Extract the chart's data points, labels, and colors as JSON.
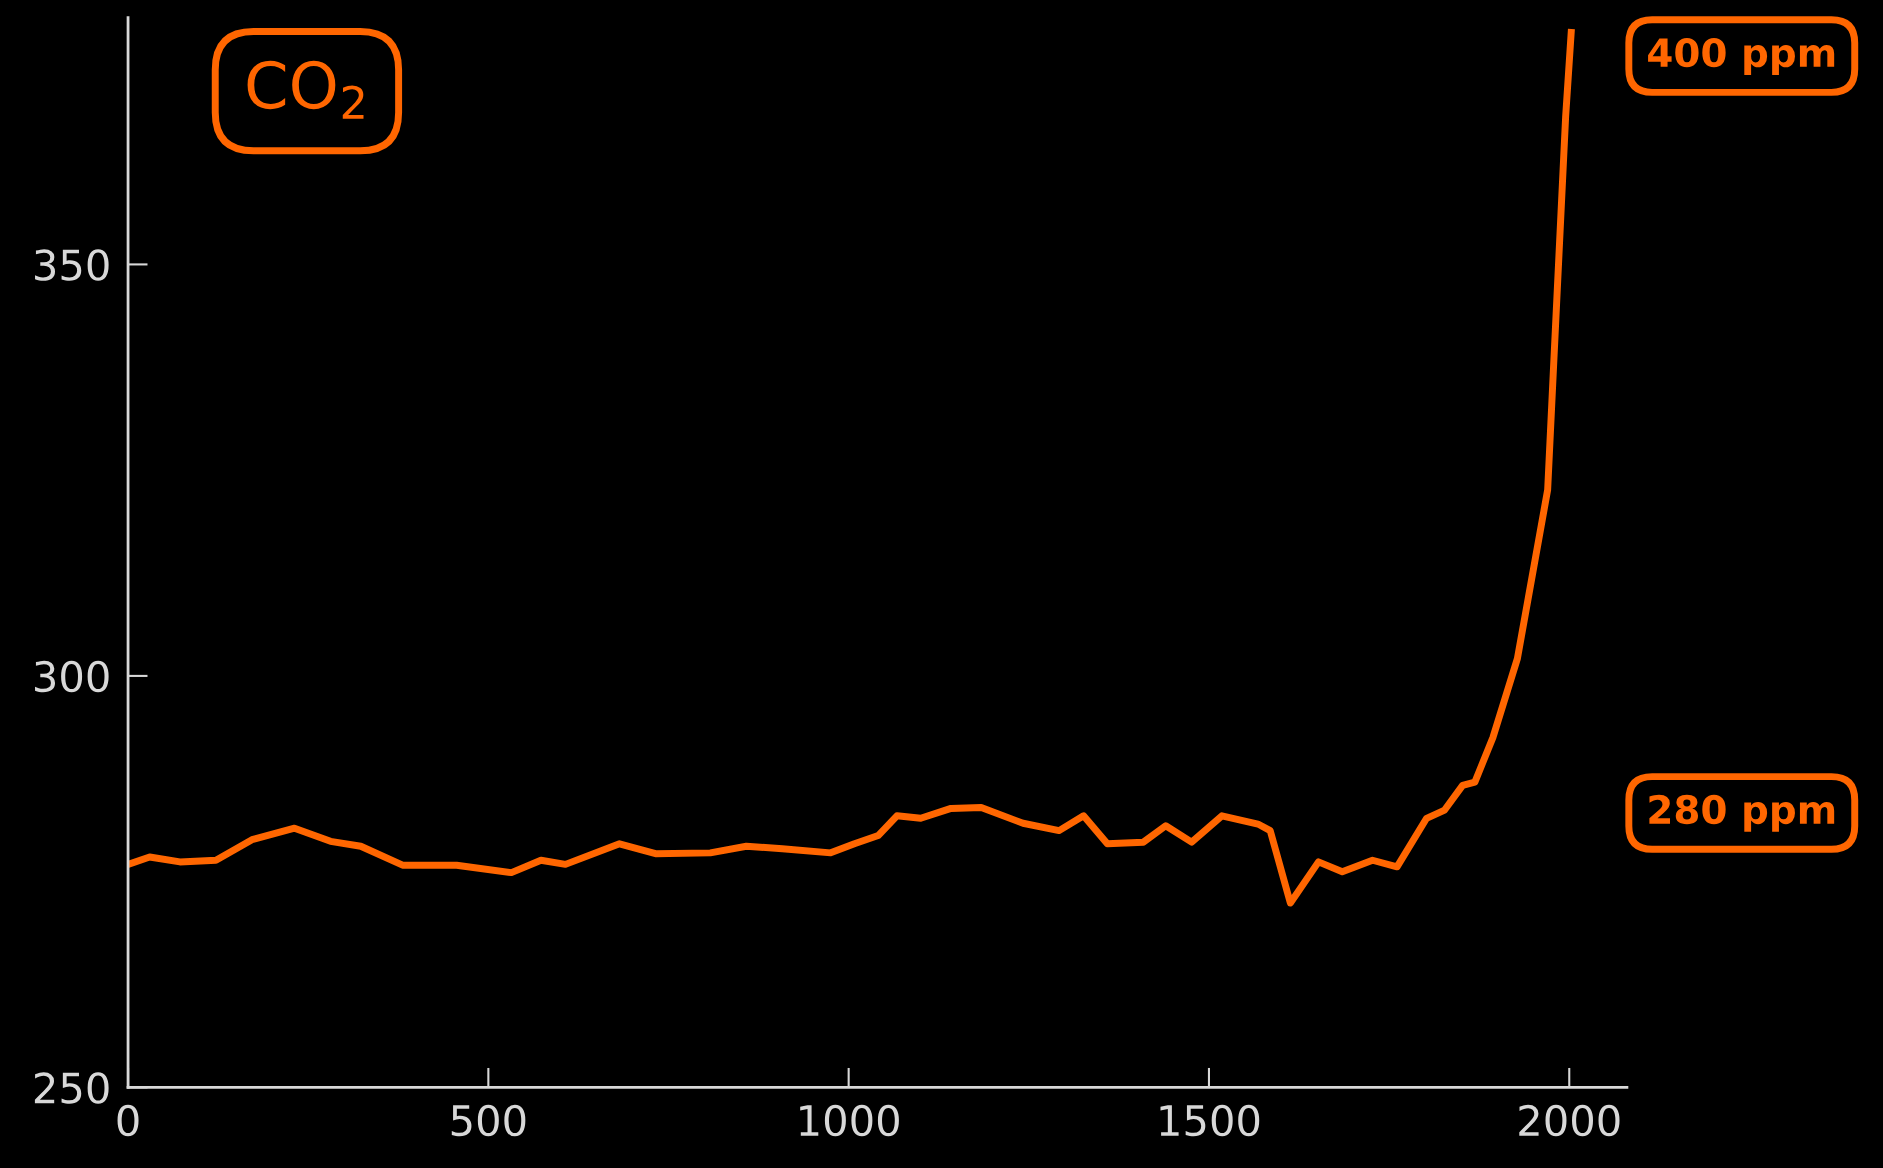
{
  "chart_data": {
    "type": "line",
    "x": [
      0,
      30,
      72,
      122,
      172,
      231,
      281,
      323,
      381,
      456,
      532,
      573,
      607,
      682,
      732,
      808,
      858,
      908,
      975,
      1008,
      1041,
      1067,
      1100,
      1142,
      1184,
      1242,
      1292,
      1326,
      1359,
      1409,
      1440,
      1476,
      1518,
      1568,
      1585,
      1613,
      1652,
      1685,
      1727,
      1761,
      1802,
      1827,
      1852,
      1869,
      1894,
      1928,
      1970,
      1978,
      1995,
      2003
    ],
    "series": [
      {
        "color": "#ff6600",
        "values": [
          277.1,
          278.0,
          277.4,
          277.6,
          280.1,
          281.5,
          279.9,
          279.3,
          277.0,
          277.0,
          276.1,
          277.6,
          277.1,
          279.6,
          278.4,
          278.5,
          279.3,
          279.0,
          278.5,
          279.6,
          280.6,
          283.0,
          282.7,
          283.9,
          284.0,
          282.1,
          281.2,
          283.0,
          279.6,
          279.8,
          281.8,
          279.8,
          283.0,
          282.0,
          281.2,
          272.4,
          277.4,
          276.2,
          277.6,
          276.8,
          282.7,
          283.7,
          286.7,
          287.1,
          292.5,
          302.1,
          322.6,
          337.2,
          368.0,
          378.6
        ]
      }
    ],
    "xlim": [
      0,
      2080
    ],
    "ylim": [
      250,
      380
    ],
    "xticks": [
      0,
      500,
      1000,
      1500,
      2000
    ],
    "yticks": [
      250,
      300,
      350
    ],
    "annotations": [
      "CO$_{2}$",
      "400 ppm",
      "280 ppm"
    ],
    "grid": false,
    "legend": false,
    "marker": "none",
    "line_style": "solid"
  }
}
